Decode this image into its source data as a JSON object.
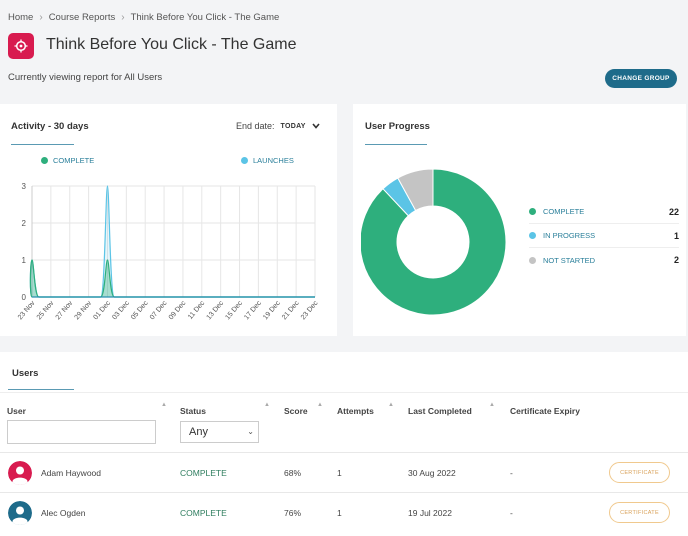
{
  "breadcrumb": {
    "home": "Home",
    "reports": "Course Reports",
    "current": "Think Before You Click - The Game"
  },
  "header": {
    "title": "Think Before You Click - The Game",
    "viewing": "Currently viewing report for All Users",
    "change_group": "CHANGE GROUP"
  },
  "activity": {
    "title": "Activity - 30 days",
    "end_date_label": "End date:",
    "end_date_value": "TODAY",
    "legend_complete": "COMPLETE",
    "legend_launches": "LAUNCHES"
  },
  "chart_data": {
    "type": "area",
    "x": [
      "23 Nov",
      "24 Nov",
      "25 Nov",
      "26 Nov",
      "27 Nov",
      "28 Nov",
      "29 Nov",
      "30 Nov",
      "01 Dec",
      "02 Dec",
      "03 Dec",
      "04 Dec",
      "05 Dec",
      "06 Dec",
      "07 Dec",
      "08 Dec",
      "09 Dec",
      "10 Dec",
      "11 Dec",
      "12 Dec",
      "13 Dec",
      "14 Dec",
      "15 Dec",
      "16 Dec",
      "17 Dec",
      "18 Dec",
      "19 Dec",
      "20 Dec",
      "21 Dec",
      "22 Dec",
      "23 Dec"
    ],
    "xtick_labels": [
      "23 Nov",
      "25 Nov",
      "27 Nov",
      "29 Nov",
      "01 Dec",
      "03 Dec",
      "05 Dec",
      "07 Dec",
      "09 Dec",
      "11 Dec",
      "13 Dec",
      "15 Dec",
      "17 Dec",
      "19 Dec",
      "21 Dec",
      "23 Dec"
    ],
    "series": [
      {
        "name": "COMPLETE",
        "color": "#2eaf7d",
        "values": [
          1,
          0,
          0,
          0,
          0,
          0,
          0,
          0,
          1,
          0,
          0,
          0,
          0,
          0,
          0,
          0,
          0,
          0,
          0,
          0,
          0,
          0,
          0,
          0,
          0,
          0,
          0,
          0,
          0,
          0,
          0
        ]
      },
      {
        "name": "LAUNCHES",
        "color": "#5bc4e6",
        "values": [
          1,
          0,
          0,
          0,
          0,
          0,
          0,
          0,
          3,
          0,
          0,
          0,
          0,
          0,
          0,
          0,
          0,
          0,
          0,
          0,
          0,
          0,
          0,
          0,
          0,
          0,
          0,
          0,
          0,
          0,
          0
        ]
      }
    ],
    "ylim": [
      0,
      3
    ],
    "yticks": [
      0,
      1,
      2,
      3
    ],
    "grid": true
  },
  "progress": {
    "title": "User Progress",
    "items": [
      {
        "label": "COMPLETE",
        "count": "22",
        "value": 22,
        "color": "#2eaf7d"
      },
      {
        "label": "IN PROGRESS",
        "count": "1",
        "value": 1,
        "color": "#5bc4e6"
      },
      {
        "label": "NOT STARTED",
        "count": "2",
        "value": 2,
        "color": "#c4c4c4"
      }
    ]
  },
  "users": {
    "title": "Users",
    "columns": {
      "user": "User",
      "status": "Status",
      "score": "Score",
      "attempts": "Attempts",
      "last": "Last Completed",
      "expiry": "Certificate Expiry"
    },
    "status_filter": "Any",
    "rows": [
      {
        "name": "Adam Haywood",
        "status": "COMPLETE",
        "score": "68%",
        "attempts": "1",
        "last": "30 Aug 2022",
        "expiry": "-",
        "cert": "CERTIFICATE",
        "avatar_color": "#d81b4f"
      },
      {
        "name": "Alec Ogden",
        "status": "COMPLETE",
        "score": "76%",
        "attempts": "1",
        "last": "19 Jul 2022",
        "expiry": "-",
        "cert": "CERTIFICATE",
        "avatar_color": "#1e6b8a"
      }
    ]
  }
}
